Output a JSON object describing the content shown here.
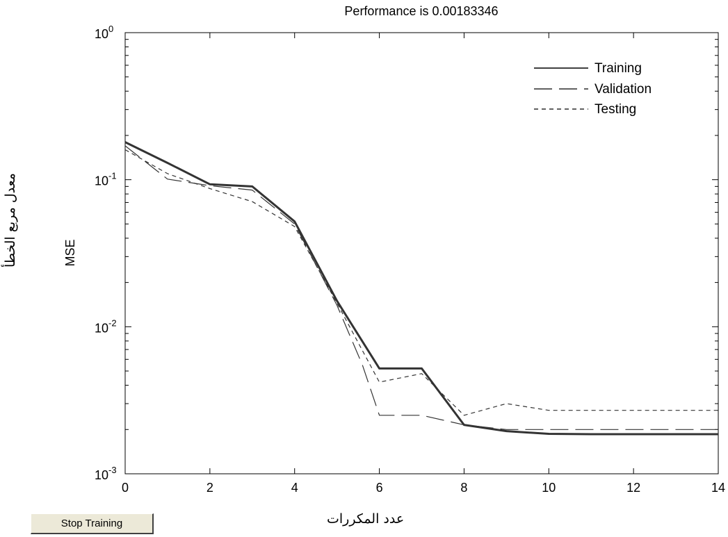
{
  "chart_data": {
    "type": "line",
    "title": "Performance is 0.00183346",
    "xlabel": "",
    "ylabel": "MSE",
    "xlim": [
      0,
      14
    ],
    "ylim": [
      0.001,
      1
    ],
    "yscale": "log",
    "grid": false,
    "legend_placement": "top-right",
    "x_ticks": [
      "0",
      "2",
      "4",
      "6",
      "8",
      "10",
      "12",
      "14"
    ],
    "y_ticks": [
      {
        "base": "10",
        "exp": "0",
        "value": 1
      },
      {
        "base": "10",
        "exp": "-1",
        "value": 0.1
      },
      {
        "base": "10",
        "exp": "-2",
        "value": 0.01
      },
      {
        "base": "10",
        "exp": "-3",
        "value": 0.001
      }
    ],
    "series": [
      {
        "name": "Training",
        "style": "solid",
        "x": [
          0,
          1,
          2,
          3,
          4,
          5,
          6,
          7,
          8,
          9,
          10,
          11,
          12,
          13,
          14
        ],
        "values": [
          0.18,
          0.13,
          0.093,
          0.09,
          0.052,
          0.015,
          0.0052,
          0.0052,
          0.00215,
          0.00195,
          0.00187,
          0.00186,
          0.00186,
          0.00186,
          0.00186
        ]
      },
      {
        "name": "Validation",
        "style": "dashed",
        "x": [
          0,
          1,
          2,
          3,
          4,
          5,
          5.6,
          6,
          7,
          8,
          9,
          10,
          11,
          12,
          13,
          14
        ],
        "values": [
          0.17,
          0.101,
          0.091,
          0.085,
          0.05,
          0.014,
          0.0055,
          0.0025,
          0.0025,
          0.00215,
          0.002,
          0.002,
          0.002,
          0.002,
          0.002,
          0.002
        ]
      },
      {
        "name": "Testing",
        "style": "dotted",
        "x": [
          0,
          1,
          2,
          3,
          4,
          5,
          6,
          7,
          8,
          9,
          10,
          11,
          12,
          13,
          14
        ],
        "values": [
          0.16,
          0.11,
          0.087,
          0.071,
          0.048,
          0.0145,
          0.0042,
          0.0048,
          0.0025,
          0.003,
          0.0027,
          0.0027,
          0.0027,
          0.0027,
          0.0027
        ]
      }
    ]
  },
  "labels": {
    "x_axis_arabic": "عدد المكررات",
    "y_axis_arabic": "معدل مربع الخطأ"
  },
  "controls": {
    "stop_button": "Stop Training"
  }
}
